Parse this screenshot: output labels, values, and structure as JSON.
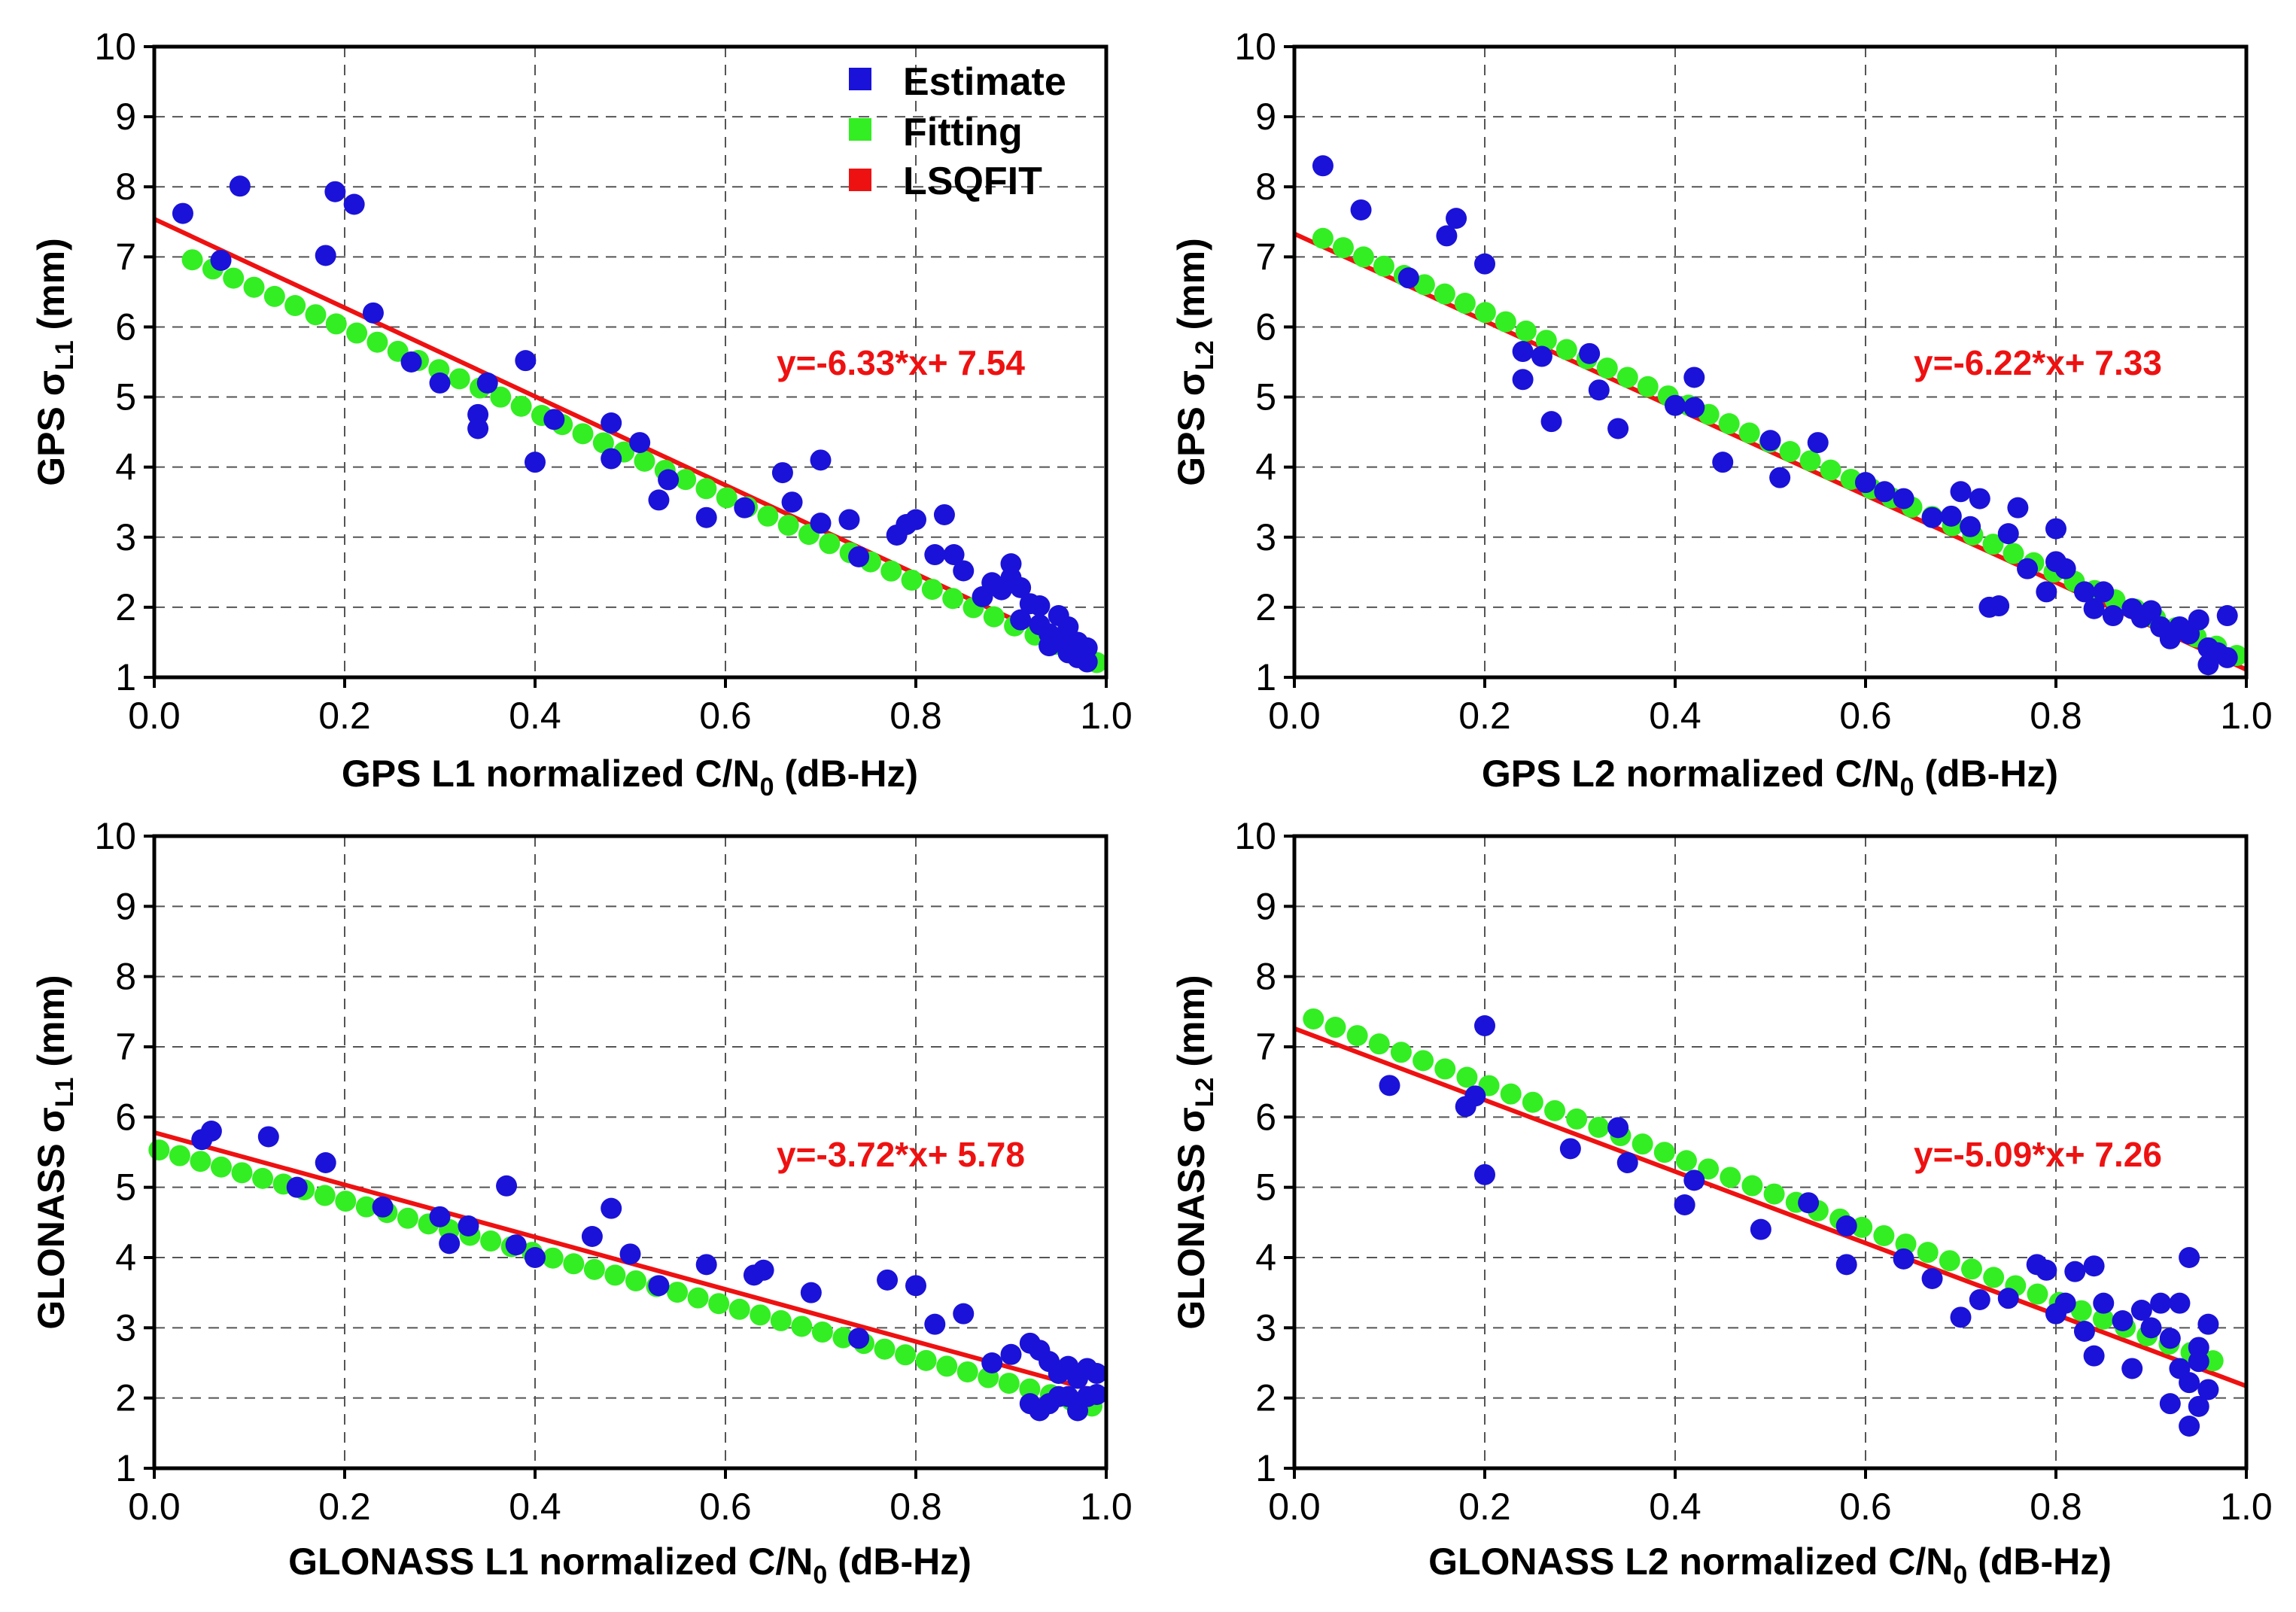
{
  "colors": {
    "estimate": "#1a12d8",
    "fitting": "#33ee22",
    "lsqfit": "#ee1111",
    "equation": "#ee1111"
  },
  "legend": [
    {
      "key": "estimate",
      "label": "Estimate"
    },
    {
      "key": "fitting",
      "label": "Fitting"
    },
    {
      "key": "lsqfit",
      "label": "LSQFIT"
    }
  ],
  "chart_data": [
    {
      "type": "scatter",
      "id": "gps-l1",
      "xlabel": "GPS L1 normalized C/N",
      "xlabel_sub": "0",
      "xlabel_suffix": " (dB-Hz)",
      "ylabel_prefix": "GPS σ",
      "ylabel_sub": "L1",
      "ylabel_suffix": " (mm)",
      "xlim": [
        0,
        1
      ],
      "ylim": [
        1,
        10
      ],
      "xticks": [
        "0.0",
        "0.2",
        "0.4",
        "0.6",
        "0.8",
        "1.0"
      ],
      "yticks": [
        "1",
        "2",
        "3",
        "4",
        "5",
        "6",
        "7",
        "8",
        "9",
        "10"
      ],
      "grid": true,
      "equation": "y=-6.33*x+ 7.54",
      "lsqfit": {
        "slope": -6.33,
        "intercept": 7.54
      },
      "fitting": {
        "a": 7.2,
        "b": -6.05,
        "x_start": 0.04,
        "x_end": 0.99,
        "n": 45
      },
      "estimate": [
        [
          0.03,
          7.62
        ],
        [
          0.09,
          8.01
        ],
        [
          0.07,
          6.95
        ],
        [
          0.18,
          7.02
        ],
        [
          0.19,
          7.93
        ],
        [
          0.21,
          7.75
        ],
        [
          0.23,
          6.2
        ],
        [
          0.27,
          5.5
        ],
        [
          0.3,
          5.2
        ],
        [
          0.34,
          4.75
        ],
        [
          0.34,
          4.55
        ],
        [
          0.35,
          5.2
        ],
        [
          0.39,
          5.52
        ],
        [
          0.4,
          4.07
        ],
        [
          0.42,
          4.68
        ],
        [
          0.48,
          4.63
        ],
        [
          0.48,
          4.12
        ],
        [
          0.51,
          4.35
        ],
        [
          0.53,
          3.53
        ],
        [
          0.54,
          3.82
        ],
        [
          0.58,
          3.28
        ],
        [
          0.62,
          3.42
        ],
        [
          0.66,
          3.92
        ],
        [
          0.67,
          3.5
        ],
        [
          0.7,
          4.1
        ],
        [
          0.7,
          3.2
        ],
        [
          0.73,
          3.25
        ],
        [
          0.74,
          2.72
        ],
        [
          0.78,
          3.03
        ],
        [
          0.79,
          3.18
        ],
        [
          0.8,
          3.25
        ],
        [
          0.82,
          2.75
        ],
        [
          0.83,
          3.32
        ],
        [
          0.84,
          2.75
        ],
        [
          0.85,
          2.52
        ],
        [
          0.87,
          2.15
        ],
        [
          0.88,
          2.35
        ],
        [
          0.89,
          2.25
        ],
        [
          0.9,
          2.62
        ],
        [
          0.9,
          2.42
        ],
        [
          0.91,
          2.28
        ],
        [
          0.91,
          1.82
        ],
        [
          0.92,
          2.05
        ],
        [
          0.93,
          1.75
        ],
        [
          0.93,
          2.02
        ],
        [
          0.94,
          1.62
        ],
        [
          0.94,
          1.45
        ],
        [
          0.95,
          1.88
        ],
        [
          0.95,
          1.55
        ],
        [
          0.96,
          1.72
        ],
        [
          0.96,
          1.35
        ],
        [
          0.97,
          1.5
        ],
        [
          0.97,
          1.28
        ],
        [
          0.98,
          1.42
        ],
        [
          0.98,
          1.22
        ]
      ]
    },
    {
      "type": "scatter",
      "id": "gps-l2",
      "xlabel": "GPS L2 normalized C/N",
      "xlabel_sub": "0",
      "xlabel_suffix": " (dB-Hz)",
      "ylabel_prefix": "GPS σ",
      "ylabel_sub": "L2",
      "ylabel_suffix": " (mm)",
      "xlim": [
        0,
        1
      ],
      "ylim": [
        1,
        10
      ],
      "xticks": [
        "0.0",
        "0.2",
        "0.4",
        "0.6",
        "0.8",
        "1.0"
      ],
      "yticks": [
        "1",
        "2",
        "3",
        "4",
        "5",
        "6",
        "7",
        "8",
        "9",
        "10"
      ],
      "grid": true,
      "equation": "y=-6.22*x+ 7.33",
      "lsqfit": {
        "slope": -6.22,
        "intercept": 7.33
      },
      "fitting": {
        "a": 7.45,
        "b": -6.2,
        "x_start": 0.03,
        "x_end": 0.99,
        "n": 46
      },
      "estimate": [
        [
          0.03,
          8.3
        ],
        [
          0.07,
          7.67
        ],
        [
          0.16,
          7.3
        ],
        [
          0.17,
          7.55
        ],
        [
          0.2,
          6.9
        ],
        [
          0.12,
          6.7
        ],
        [
          0.24,
          5.65
        ],
        [
          0.24,
          5.25
        ],
        [
          0.26,
          5.58
        ],
        [
          0.27,
          4.65
        ],
        [
          0.31,
          5.62
        ],
        [
          0.32,
          5.1
        ],
        [
          0.34,
          4.55
        ],
        [
          0.4,
          4.88
        ],
        [
          0.42,
          5.28
        ],
        [
          0.42,
          4.85
        ],
        [
          0.45,
          4.07
        ],
        [
          0.5,
          4.38
        ],
        [
          0.51,
          3.85
        ],
        [
          0.55,
          4.35
        ],
        [
          0.6,
          3.78
        ],
        [
          0.62,
          3.65
        ],
        [
          0.64,
          3.55
        ],
        [
          0.67,
          3.28
        ],
        [
          0.69,
          3.3
        ],
        [
          0.7,
          3.65
        ],
        [
          0.71,
          3.15
        ],
        [
          0.72,
          3.55
        ],
        [
          0.73,
          2.0
        ],
        [
          0.74,
          2.02
        ],
        [
          0.75,
          3.05
        ],
        [
          0.76,
          3.42
        ],
        [
          0.77,
          2.55
        ],
        [
          0.79,
          2.22
        ],
        [
          0.8,
          3.12
        ],
        [
          0.8,
          2.65
        ],
        [
          0.81,
          2.55
        ],
        [
          0.83,
          2.22
        ],
        [
          0.84,
          1.98
        ],
        [
          0.85,
          2.22
        ],
        [
          0.86,
          1.88
        ],
        [
          0.88,
          1.98
        ],
        [
          0.89,
          1.85
        ],
        [
          0.9,
          1.95
        ],
        [
          0.91,
          1.72
        ],
        [
          0.92,
          1.55
        ],
        [
          0.93,
          1.72
        ],
        [
          0.94,
          1.62
        ],
        [
          0.95,
          1.82
        ],
        [
          0.96,
          1.42
        ],
        [
          0.97,
          1.35
        ],
        [
          0.98,
          1.88
        ],
        [
          0.98,
          1.28
        ],
        [
          0.96,
          1.18
        ]
      ]
    },
    {
      "type": "scatter",
      "id": "glonass-l1",
      "xlabel": "GLONASS L1 normalized C/N",
      "xlabel_sub": "0",
      "xlabel_suffix": " (dB-Hz)",
      "ylabel_prefix": "GLONASS σ",
      "ylabel_sub": "L1",
      "ylabel_suffix": " (mm)",
      "xlim": [
        0,
        1
      ],
      "ylim": [
        1,
        10
      ],
      "xticks": [
        "0.0",
        "0.2",
        "0.4",
        "0.6",
        "0.8",
        "1.0"
      ],
      "yticks": [
        "1",
        "2",
        "3",
        "4",
        "5",
        "6",
        "7",
        "8",
        "9",
        "10"
      ],
      "grid": true,
      "equation": "y=-3.72*x+ 5.78",
      "lsqfit": {
        "slope": -3.72,
        "intercept": 5.78
      },
      "fitting": {
        "a": 5.55,
        "b": -3.72,
        "x_start": 0.005,
        "x_end": 0.985,
        "n": 46
      },
      "estimate": [
        [
          0.05,
          5.68
        ],
        [
          0.06,
          5.8
        ],
        [
          0.12,
          5.72
        ],
        [
          0.15,
          5.0
        ],
        [
          0.18,
          5.35
        ],
        [
          0.24,
          4.72
        ],
        [
          0.3,
          4.58
        ],
        [
          0.31,
          4.2
        ],
        [
          0.33,
          4.45
        ],
        [
          0.37,
          5.02
        ],
        [
          0.38,
          4.18
        ],
        [
          0.4,
          4.0
        ],
        [
          0.46,
          4.3
        ],
        [
          0.48,
          4.7
        ],
        [
          0.5,
          4.05
        ],
        [
          0.53,
          3.6
        ],
        [
          0.58,
          3.9
        ],
        [
          0.63,
          3.75
        ],
        [
          0.64,
          3.82
        ],
        [
          0.69,
          3.5
        ],
        [
          0.74,
          2.85
        ],
        [
          0.77,
          3.68
        ],
        [
          0.8,
          3.6
        ],
        [
          0.82,
          3.05
        ],
        [
          0.85,
          3.2
        ],
        [
          0.88,
          2.5
        ],
        [
          0.9,
          2.62
        ],
        [
          0.92,
          2.78
        ],
        [
          0.92,
          1.92
        ],
        [
          0.93,
          2.68
        ],
        [
          0.93,
          1.82
        ],
        [
          0.94,
          2.52
        ],
        [
          0.94,
          1.92
        ],
        [
          0.95,
          2.35
        ],
        [
          0.95,
          2.02
        ],
        [
          0.96,
          2.45
        ],
        [
          0.96,
          2.02
        ],
        [
          0.97,
          2.28
        ],
        [
          0.97,
          1.82
        ],
        [
          0.98,
          2.42
        ],
        [
          0.98,
          2.02
        ],
        [
          0.99,
          2.35
        ],
        [
          0.99,
          2.05
        ]
      ]
    },
    {
      "type": "scatter",
      "id": "glonass-l2",
      "xlabel": "GLONASS L2 normalized C/N",
      "xlabel_sub": "0",
      "xlabel_suffix": " (dB-Hz)",
      "ylabel_prefix": "GLONASS σ",
      "ylabel_sub": "L2",
      "ylabel_suffix": " (mm)",
      "xlim": [
        0,
        1
      ],
      "ylim": [
        1,
        10
      ],
      "xticks": [
        "0.0",
        "0.2",
        "0.4",
        "0.6",
        "0.8",
        "1.0"
      ],
      "yticks": [
        "1",
        "2",
        "3",
        "4",
        "5",
        "6",
        "7",
        "8",
        "9",
        "10"
      ],
      "grid": true,
      "equation": "y=-5.09*x+ 7.26",
      "lsqfit": {
        "slope": -5.09,
        "intercept": 7.26
      },
      "fitting": {
        "a": 7.5,
        "b": -5.15,
        "x_start": 0.02,
        "x_end": 0.965,
        "n": 42
      },
      "estimate": [
        [
          0.1,
          6.45
        ],
        [
          0.18,
          6.15
        ],
        [
          0.19,
          6.3
        ],
        [
          0.2,
          7.3
        ],
        [
          0.2,
          5.18
        ],
        [
          0.29,
          5.55
        ],
        [
          0.34,
          5.85
        ],
        [
          0.35,
          5.35
        ],
        [
          0.41,
          4.75
        ],
        [
          0.42,
          5.1
        ],
        [
          0.49,
          4.4
        ],
        [
          0.54,
          4.78
        ],
        [
          0.58,
          3.9
        ],
        [
          0.58,
          4.45
        ],
        [
          0.64,
          3.98
        ],
        [
          0.67,
          3.7
        ],
        [
          0.7,
          3.15
        ],
        [
          0.72,
          3.4
        ],
        [
          0.75,
          3.42
        ],
        [
          0.78,
          3.9
        ],
        [
          0.79,
          3.82
        ],
        [
          0.8,
          3.2
        ],
        [
          0.81,
          3.35
        ],
        [
          0.82,
          3.8
        ],
        [
          0.83,
          2.95
        ],
        [
          0.84,
          2.6
        ],
        [
          0.84,
          3.88
        ],
        [
          0.85,
          3.35
        ],
        [
          0.87,
          3.1
        ],
        [
          0.88,
          2.42
        ],
        [
          0.89,
          3.25
        ],
        [
          0.9,
          3.0
        ],
        [
          0.91,
          3.35
        ],
        [
          0.92,
          2.85
        ],
        [
          0.92,
          1.92
        ],
        [
          0.93,
          3.35
        ],
        [
          0.93,
          2.42
        ],
        [
          0.94,
          4.0
        ],
        [
          0.94,
          1.6
        ],
        [
          0.94,
          2.22
        ],
        [
          0.95,
          2.52
        ],
        [
          0.95,
          1.88
        ],
        [
          0.96,
          3.05
        ],
        [
          0.96,
          2.12
        ],
        [
          0.95,
          2.72
        ]
      ]
    }
  ]
}
